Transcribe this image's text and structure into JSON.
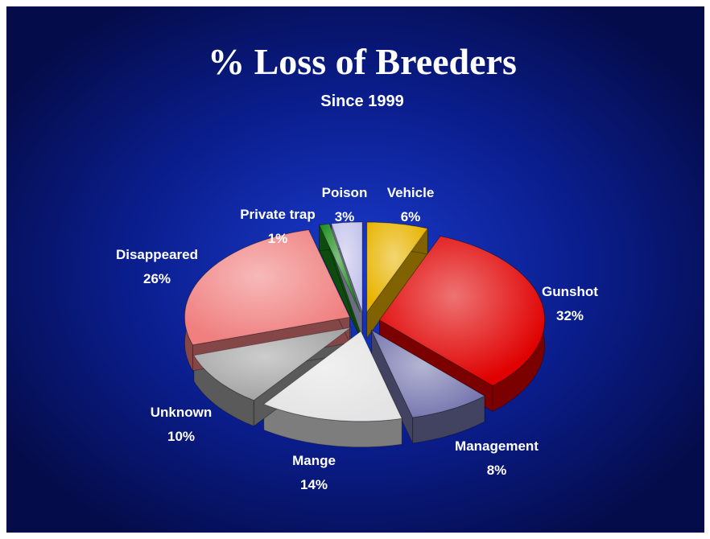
{
  "chart_data": {
    "type": "pie",
    "title": "% Loss of Breeders",
    "subtitle": "Since 1999",
    "categories": [
      "Vehicle",
      "Gunshot",
      "Management",
      "Mange",
      "Unknown",
      "Disappeared",
      "Private trap",
      "Poison"
    ],
    "values": [
      6,
      32,
      8,
      14,
      10,
      26,
      1,
      3
    ],
    "value_labels": [
      "6%",
      "32%",
      "8%",
      "14%",
      "10%",
      "26%",
      "1%",
      "3%"
    ],
    "colors": [
      "#e8b400",
      "#e00000",
      "#7878b0",
      "#e4e4e4",
      "#a4a4a4",
      "#f08080",
      "#1a8a1a",
      "#c4c4ec"
    ]
  }
}
